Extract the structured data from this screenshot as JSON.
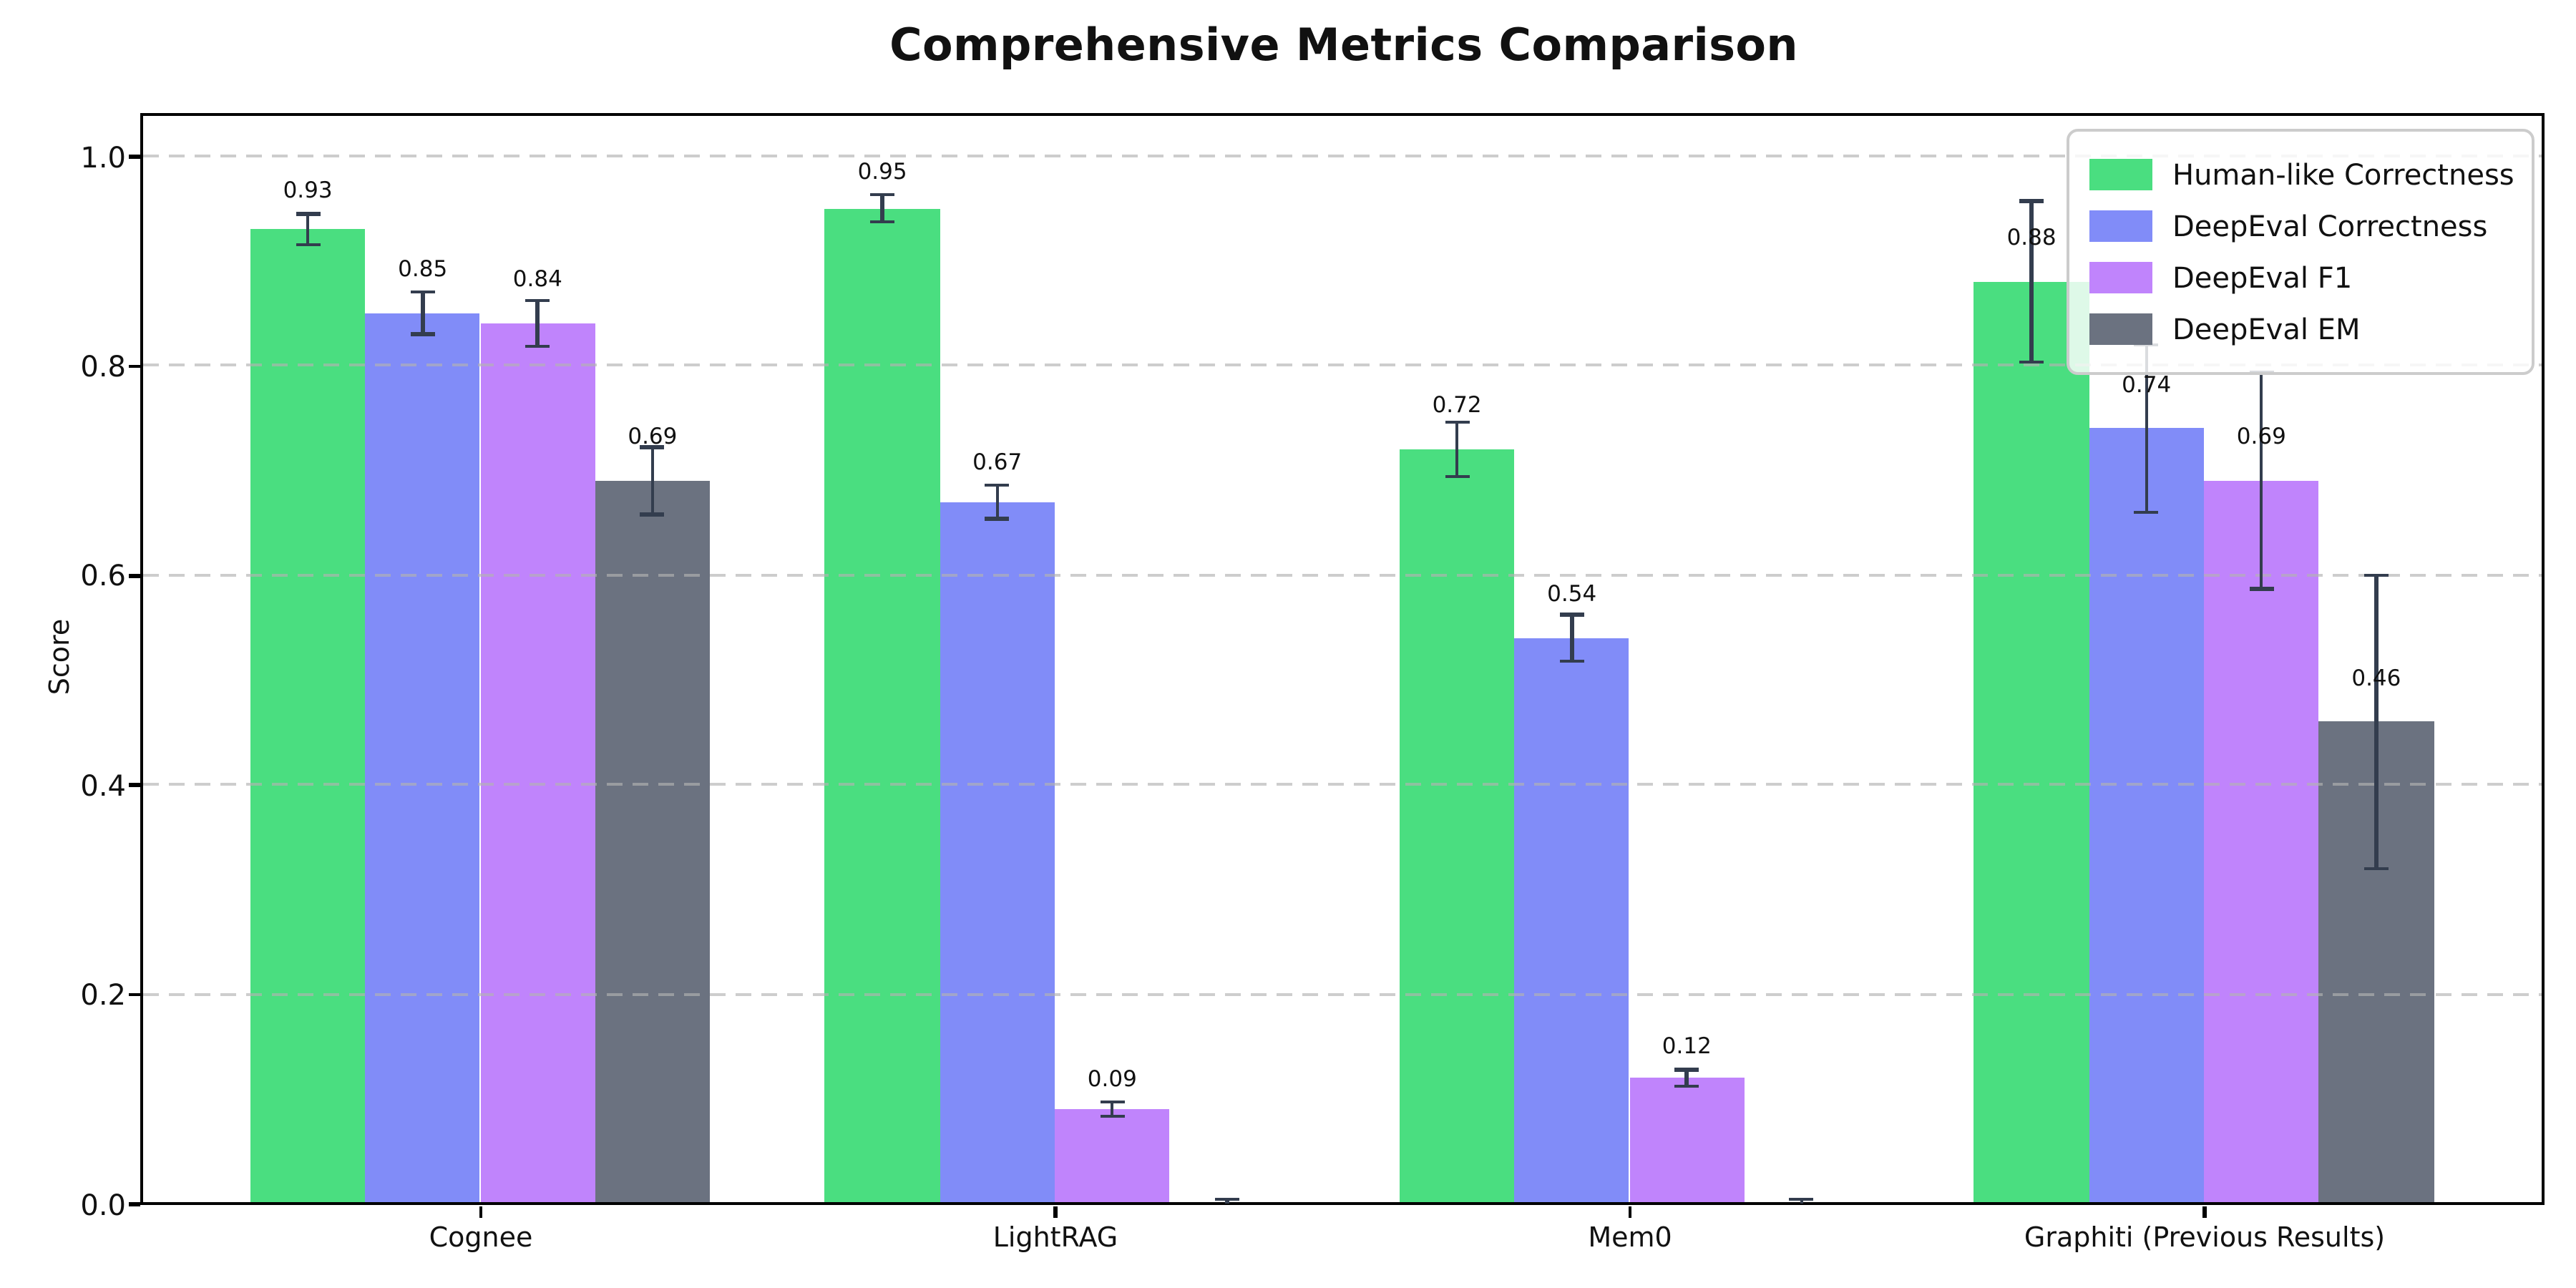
{
  "figure": {
    "title": "Comprehensive Metrics Comparison"
  },
  "chart_data": {
    "type": "bar",
    "title": "Comprehensive Metrics Comparison",
    "xlabel": "",
    "ylabel": "Score",
    "categories": [
      "Cognee",
      "LightRAG",
      "Mem0",
      "Graphiti (Previous Results)"
    ],
    "series": [
      {
        "name": "Human-like Correctness",
        "color": "#4ade80",
        "values": [
          0.93,
          0.95,
          0.72,
          0.88
        ],
        "errors": [
          0.015,
          0.013,
          0.026,
          0.077
        ],
        "value_labels": [
          "0.93",
          "0.95",
          "0.72",
          "0.88"
        ]
      },
      {
        "name": "DeepEval Correctness",
        "color": "#818cf8",
        "values": [
          0.85,
          0.67,
          0.54,
          0.74
        ],
        "errors": [
          0.02,
          0.016,
          0.022,
          0.08
        ],
        "value_labels": [
          "0.85",
          "0.67",
          "0.54",
          "0.74"
        ]
      },
      {
        "name": "DeepEval F1",
        "color": "#c084fc",
        "values": [
          0.84,
          0.09,
          0.12,
          0.69
        ],
        "errors": [
          0.022,
          0.007,
          0.008,
          0.103
        ],
        "value_labels": [
          "0.84",
          "0.09",
          "0.12",
          "0.69"
        ]
      },
      {
        "name": "DeepEval EM",
        "color": "#6b7280",
        "values": [
          0.69,
          0.0,
          0.0,
          0.46
        ],
        "errors": [
          0.032,
          0.004,
          0.004,
          0.14
        ],
        "value_labels": [
          "0.69",
          "",
          "",
          "0.46"
        ]
      }
    ],
    "yticks": [
      "0.0",
      "0.2",
      "0.4",
      "0.6",
      "0.8",
      "1.0"
    ],
    "ylim": [
      0,
      1.04
    ],
    "grid": {
      "axis": "y",
      "style": "dashed",
      "on": true,
      "above_bars": true
    },
    "legend_position": "upper right",
    "error_bar_color": "#333d4e",
    "background_color": "#ffffff"
  }
}
